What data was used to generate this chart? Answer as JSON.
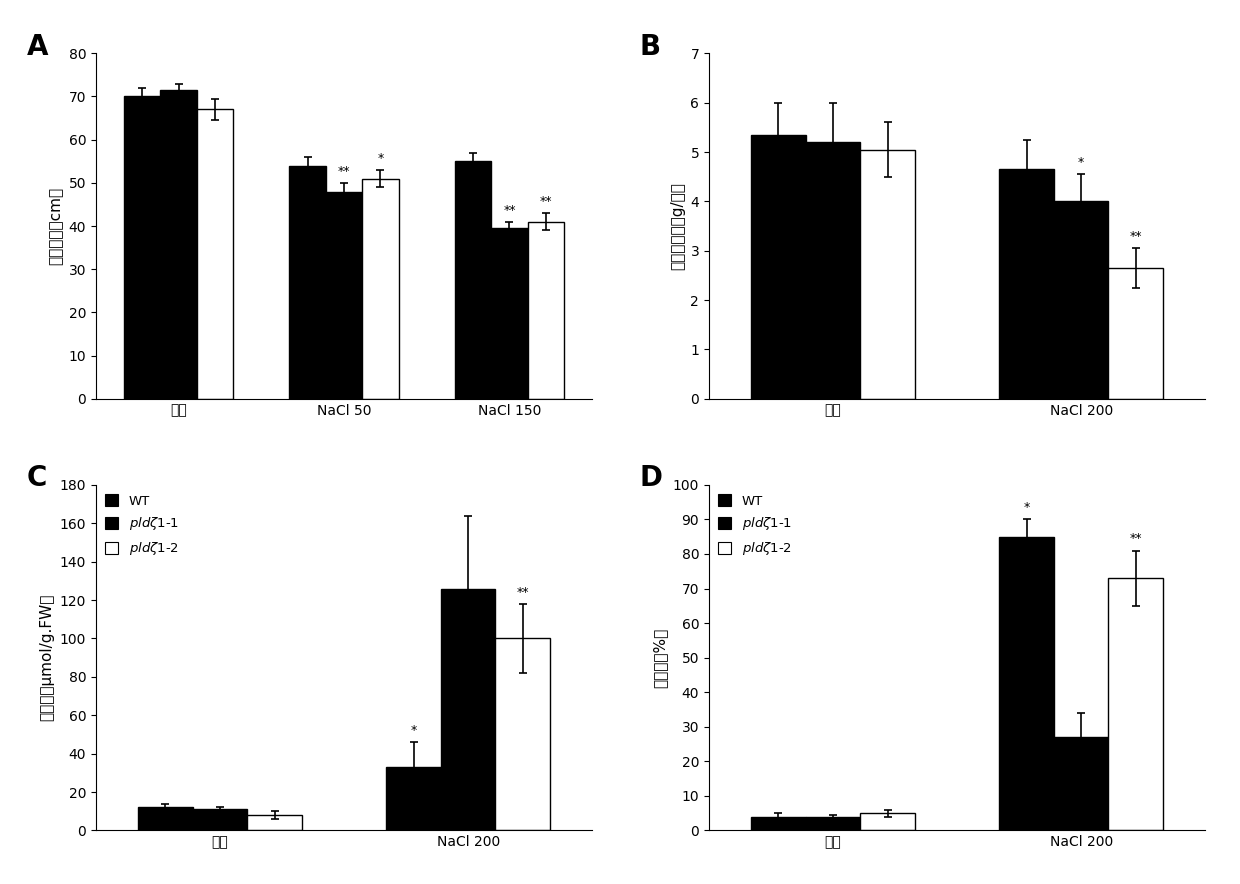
{
  "A": {
    "panel_label": "A",
    "groups": [
      "正常",
      "NaCl 50",
      "NaCl 150"
    ],
    "series": [
      "WT",
      "pldζ1-1",
      "pldζ1-2"
    ],
    "values": [
      [
        70,
        71.5,
        67
      ],
      [
        54,
        48,
        51
      ],
      [
        55,
        39.5,
        41
      ]
    ],
    "errors": [
      [
        2.0,
        1.5,
        2.5
      ],
      [
        2.0,
        2.0,
        2.0
      ],
      [
        2.0,
        1.5,
        2.0
      ]
    ],
    "ylabel": "植株高度（cm）",
    "ylim": [
      0,
      80
    ],
    "yticks": [
      0,
      10,
      20,
      30,
      40,
      50,
      60,
      70,
      80
    ],
    "sig_markers": {
      "NaCl 50": [
        "",
        "**",
        "*"
      ],
      "NaCl 150": [
        "",
        "**",
        "**"
      ]
    }
  },
  "B": {
    "panel_label": "B",
    "groups": [
      "正常",
      "NaCl 200"
    ],
    "series": [
      "WT",
      "pldζ1-1",
      "pldζ1-2"
    ],
    "values": [
      [
        5.35,
        5.2,
        5.05
      ],
      [
        4.65,
        4.0,
        2.65
      ]
    ],
    "errors": [
      [
        0.65,
        0.8,
        0.55
      ],
      [
        0.6,
        0.55,
        0.4
      ]
    ],
    "ylabel": "地上部鲜重（g/株）",
    "ylim": [
      0,
      7
    ],
    "yticks": [
      0,
      1,
      2,
      3,
      4,
      5,
      6,
      7
    ],
    "sig_markers": {
      "NaCl 200": [
        "",
        "*",
        "**"
      ]
    }
  },
  "C": {
    "panel_label": "C",
    "groups": [
      "正常",
      "NaCl 200"
    ],
    "series": [
      "WT",
      "pldζ1-1",
      "pldζ1-2"
    ],
    "values": [
      [
        12,
        11,
        8
      ],
      [
        33,
        126,
        100
      ]
    ],
    "errors": [
      [
        2.0,
        1.0,
        2.0
      ],
      [
        13.0,
        38.0,
        18.0
      ]
    ],
    "ylabel": "丙二醉（μmol/g.FW）",
    "ylim": [
      0,
      180
    ],
    "yticks": [
      0,
      20,
      40,
      60,
      80,
      100,
      120,
      140,
      160,
      180
    ],
    "sig_markers": {
      "NaCl 200": [
        "*",
        "",
        "**"
      ]
    },
    "legend": true
  },
  "D": {
    "panel_label": "D",
    "groups": [
      "正常",
      "NaCl 200"
    ],
    "series": [
      "WT",
      "pldζ1-1",
      "pldζ1-2"
    ],
    "values": [
      [
        4,
        4,
        5
      ],
      [
        85,
        27,
        73
      ]
    ],
    "errors": [
      [
        1.0,
        0.5,
        1.0
      ],
      [
        5.0,
        7.0,
        8.0
      ]
    ],
    "ylabel": "电导率（%）",
    "ylim": [
      0,
      100
    ],
    "yticks": [
      0,
      10,
      20,
      30,
      40,
      50,
      60,
      70,
      80,
      90,
      100
    ],
    "sig_markers": {
      "NaCl 200": [
        "*",
        "",
        "**"
      ]
    },
    "legend": true
  },
  "bar_colors": [
    "#000000",
    "#000000",
    "#ffffff"
  ],
  "bar_edge_color": "#000000",
  "bar_width": 0.22,
  "fig_bg": "#ffffff",
  "font_size": 10,
  "label_font_size": 11,
  "tick_font_size": 10
}
